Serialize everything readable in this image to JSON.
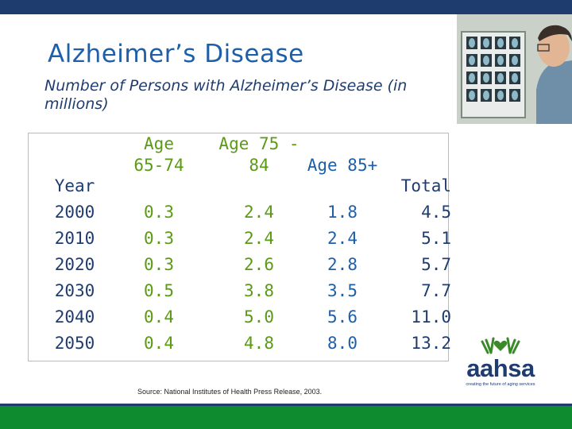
{
  "slide": {
    "title": "Alzheimer’s Disease",
    "subtitle": "Number of Persons with Alzheimer’s Disease (in millions)",
    "source": "Source: National Institutes of Health Press Release, 2003."
  },
  "table": {
    "headers": {
      "year": "Year",
      "age_65_74": "Age 65-74",
      "age_75_84": "Age 75 - 84",
      "age_85": "Age 85+",
      "total": "Total"
    },
    "rows": [
      {
        "year": "2000",
        "age_65_74": "0.3",
        "age_75_84": "2.4",
        "age_85": "1.8",
        "total": "4.5"
      },
      {
        "year": "2010",
        "age_65_74": "0.3",
        "age_75_84": "2.4",
        "age_85": "2.4",
        "total": "5.1"
      },
      {
        "year": "2020",
        "age_65_74": "0.3",
        "age_75_84": "2.6",
        "age_85": "2.8",
        "total": "5.7"
      },
      {
        "year": "2030",
        "age_65_74": "0.5",
        "age_75_84": "3.8",
        "age_85": "3.5",
        "total": "7.7"
      },
      {
        "year": "2040",
        "age_65_74": "0.4",
        "age_75_84": "5.0",
        "age_85": "5.6",
        "total": "11.0"
      },
      {
        "year": "2050",
        "age_65_74": "0.4",
        "age_75_84": "4.8",
        "age_85": "8.0",
        "total": "13.2"
      }
    ]
  },
  "logo": {
    "name": "aahsa",
    "tagline": "creating the future of aging services"
  },
  "colors": {
    "navy": "#1f3c6e",
    "blue": "#1f5fa8",
    "green": "#5a9a14",
    "footer_green": "#0e8a2f"
  }
}
